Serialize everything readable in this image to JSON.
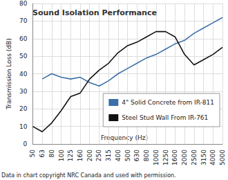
{
  "chart_data": {
    "type": "line",
    "title": "Sound Isolation Performance",
    "x_label": "Frequency (Hz)",
    "y_label": "Transmission Loss (dB)",
    "categories": [
      "50",
      "63",
      "80",
      "100",
      "125",
      "160",
      "200",
      "250",
      "315",
      "400",
      "500",
      "630",
      "800",
      "1000",
      "1250",
      "1600",
      "2000",
      "2500",
      "3150",
      "4000",
      "5000"
    ],
    "series": [
      {
        "name": "4\" Solid Concrete from IR-811",
        "color": "#3d6fa8",
        "line_style": "solid",
        "values": [
          null,
          37,
          40,
          38,
          37,
          38,
          35,
          33,
          36,
          40,
          43,
          46,
          49,
          51,
          54,
          57,
          59,
          63,
          66,
          69,
          72
        ]
      },
      {
        "name": "Steel Stud Wall From IR-761",
        "color": "#111111",
        "line_style": "solid",
        "values": [
          10,
          7,
          12,
          19,
          27,
          29,
          37,
          42,
          46,
          52,
          56,
          58,
          61,
          64,
          64,
          61,
          51,
          45,
          48,
          51,
          55
        ]
      }
    ],
    "ylim": [
      0,
      80
    ],
    "yticks": [
      0,
      10,
      20,
      30,
      40,
      50,
      60,
      70,
      80
    ],
    "grid": true,
    "legend": "right",
    "annotations": [
      "Data in chart copyright NRC Canada and used with permission."
    ]
  }
}
